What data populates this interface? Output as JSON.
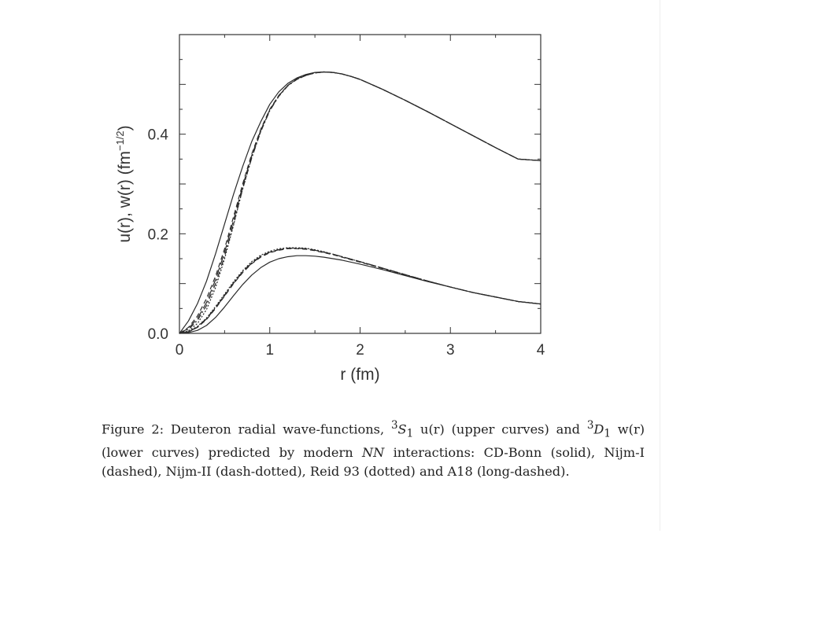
{
  "chart_data": {
    "type": "line",
    "title": "",
    "xlabel": "r (fm)",
    "ylabel_main": "u(r), w(r) (fm",
    "ylabel_sup": "−1/2",
    "ylabel_close": ")",
    "xlim": [
      0,
      4
    ],
    "ylim": [
      0,
      0.6
    ],
    "x_ticks": [
      {
        "value": 0,
        "label": "0"
      },
      {
        "value": 1,
        "label": "1"
      },
      {
        "value": 2,
        "label": "2"
      },
      {
        "value": 3,
        "label": "3"
      },
      {
        "value": 4,
        "label": "4"
      }
    ],
    "y_ticks": [
      {
        "value": 0,
        "label": "0.0"
      },
      {
        "value": 0.2,
        "label": "0.2"
      },
      {
        "value": 0.4,
        "label": "0.4"
      }
    ],
    "x": [
      0,
      0.1,
      0.2,
      0.3,
      0.4,
      0.5,
      0.6,
      0.7,
      0.8,
      0.9,
      1.0,
      1.1,
      1.2,
      1.3,
      1.4,
      1.5,
      1.6,
      1.7,
      1.8,
      1.9,
      2.0,
      2.25,
      2.5,
      2.75,
      3.0,
      3.25,
      3.5,
      3.75,
      4.0
    ],
    "series": [
      {
        "group": "u",
        "dash": "",
        "values": [
          0,
          0.025,
          0.06,
          0.105,
          0.16,
          0.22,
          0.28,
          0.335,
          0.385,
          0.425,
          0.46,
          0.485,
          0.502,
          0.513,
          0.52,
          0.524,
          0.525,
          0.524,
          0.521,
          0.516,
          0.51,
          0.49,
          0.468,
          0.445,
          0.421,
          0.397,
          0.373,
          0.35,
          0.347
        ]
      },
      {
        "group": "u",
        "dash": "6,4",
        "values": [
          0,
          0.012,
          0.035,
          0.07,
          0.115,
          0.17,
          0.235,
          0.3,
          0.36,
          0.41,
          0.45,
          0.478,
          0.498,
          0.51,
          0.518,
          0.523,
          0.525,
          0.524,
          0.521,
          0.516,
          0.51,
          0.49,
          0.468,
          0.445,
          0.421,
          0.397,
          0.373,
          0.35,
          0.347
        ]
      },
      {
        "group": "u",
        "dash": "7,3,2,3",
        "values": [
          0,
          0.008,
          0.026,
          0.056,
          0.1,
          0.155,
          0.22,
          0.29,
          0.352,
          0.405,
          0.447,
          0.476,
          0.497,
          0.51,
          0.518,
          0.523,
          0.525,
          0.524,
          0.521,
          0.516,
          0.51,
          0.49,
          0.468,
          0.445,
          0.421,
          0.397,
          0.373,
          0.35,
          0.347
        ]
      },
      {
        "group": "u",
        "dash": "2,2",
        "values": [
          0,
          0.005,
          0.02,
          0.048,
          0.092,
          0.15,
          0.218,
          0.29,
          0.353,
          0.406,
          0.448,
          0.477,
          0.498,
          0.511,
          0.519,
          0.523,
          0.525,
          0.524,
          0.521,
          0.516,
          0.51,
          0.49,
          0.468,
          0.445,
          0.421,
          0.397,
          0.373,
          0.35,
          0.347
        ]
      },
      {
        "group": "u",
        "dash": "11,4",
        "values": [
          0,
          0.01,
          0.03,
          0.062,
          0.108,
          0.163,
          0.228,
          0.296,
          0.357,
          0.408,
          0.449,
          0.477,
          0.498,
          0.511,
          0.519,
          0.523,
          0.525,
          0.524,
          0.521,
          0.516,
          0.51,
          0.49,
          0.468,
          0.445,
          0.421,
          0.397,
          0.373,
          0.35,
          0.347
        ]
      },
      {
        "group": "w",
        "dash": "",
        "values": [
          0,
          0.0015,
          0.006,
          0.016,
          0.032,
          0.053,
          0.076,
          0.098,
          0.117,
          0.132,
          0.143,
          0.15,
          0.154,
          0.156,
          0.156,
          0.155,
          0.153,
          0.15,
          0.147,
          0.143,
          0.139,
          0.128,
          0.116,
          0.104,
          0.093,
          0.082,
          0.073,
          0.064,
          0.059
        ]
      },
      {
        "group": "w",
        "dash": "6,4",
        "values": [
          0,
          0.003,
          0.012,
          0.028,
          0.05,
          0.075,
          0.1,
          0.122,
          0.14,
          0.153,
          0.162,
          0.167,
          0.17,
          0.17,
          0.169,
          0.166,
          0.162,
          0.158,
          0.153,
          0.148,
          0.143,
          0.13,
          0.117,
          0.105,
          0.093,
          0.082,
          0.073,
          0.064,
          0.059
        ]
      },
      {
        "group": "w",
        "dash": "7,3,2,3",
        "values": [
          0,
          0.0035,
          0.013,
          0.03,
          0.052,
          0.077,
          0.102,
          0.124,
          0.142,
          0.155,
          0.163,
          0.168,
          0.171,
          0.171,
          0.17,
          0.167,
          0.163,
          0.159,
          0.154,
          0.149,
          0.144,
          0.131,
          0.118,
          0.105,
          0.093,
          0.082,
          0.073,
          0.064,
          0.059
        ]
      },
      {
        "group": "w",
        "dash": "2,2",
        "values": [
          0,
          0.004,
          0.014,
          0.031,
          0.054,
          0.079,
          0.104,
          0.126,
          0.144,
          0.157,
          0.165,
          0.17,
          0.172,
          0.172,
          0.171,
          0.168,
          0.164,
          0.159,
          0.154,
          0.149,
          0.144,
          0.131,
          0.118,
          0.105,
          0.093,
          0.082,
          0.073,
          0.064,
          0.059
        ]
      },
      {
        "group": "w",
        "dash": "11,4",
        "values": [
          0,
          0.0032,
          0.0125,
          0.029,
          0.051,
          0.076,
          0.101,
          0.123,
          0.141,
          0.154,
          0.163,
          0.168,
          0.171,
          0.171,
          0.17,
          0.167,
          0.163,
          0.159,
          0.154,
          0.149,
          0.144,
          0.131,
          0.118,
          0.105,
          0.093,
          0.082,
          0.073,
          0.064,
          0.059
        ]
      }
    ]
  },
  "caption": {
    "figure_label": "Figure 2:",
    "text_1": " Deuteron radial wave-functions, ",
    "s_state_prefix": "3",
    "s_state_letter": "S",
    "s_state_sub": "1",
    "text_2": " u(r) (upper curves) and ",
    "d_state_prefix": "3",
    "d_state_letter": "D",
    "d_state_sub": "1",
    "text_3": " w(r) (lower curves) predicted by modern ",
    "nn": "NN",
    "text_4": " interactions: CD-Bonn (solid), Nijm-I (dashed), Nijm-II (dash-dotted), Reid 93 (dotted) and A18 (long-dashed)."
  }
}
